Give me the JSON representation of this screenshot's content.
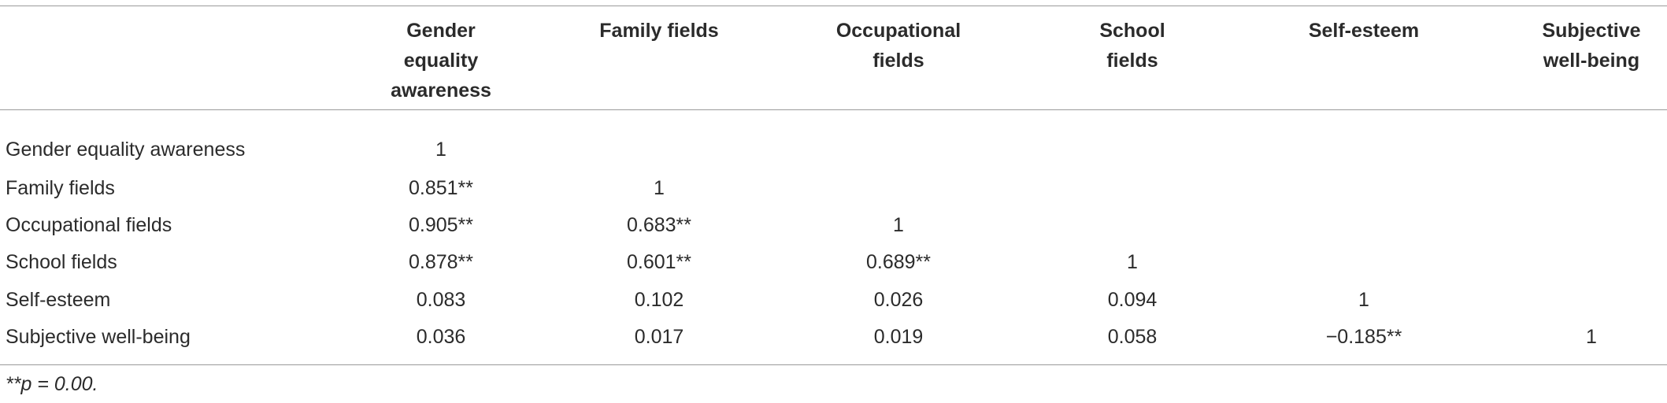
{
  "table": {
    "columns": [
      "Gender equality awareness",
      "Family fields",
      "Occupational fields",
      "School fields",
      "Self-esteem",
      "Subjective well-being"
    ],
    "rows": [
      {
        "label": "Gender equality awareness",
        "cells": [
          "1"
        ]
      },
      {
        "label": "Family fields",
        "cells": [
          "0.851**",
          "1"
        ]
      },
      {
        "label": "Occupational fields",
        "cells": [
          "0.905**",
          "0.683**",
          "1"
        ]
      },
      {
        "label": "School fields",
        "cells": [
          "0.878**",
          "0.601**",
          "0.689**",
          "1"
        ]
      },
      {
        "label": "Self-esteem",
        "cells": [
          "0.083",
          "0.102",
          "0.026",
          "0.094",
          "1"
        ]
      },
      {
        "label": "Subjective well-being",
        "cells": [
          "0.036",
          "0.017",
          "0.019",
          "0.058",
          "−0.185**",
          "1"
        ]
      }
    ],
    "footnote": "**p = 0.00."
  }
}
